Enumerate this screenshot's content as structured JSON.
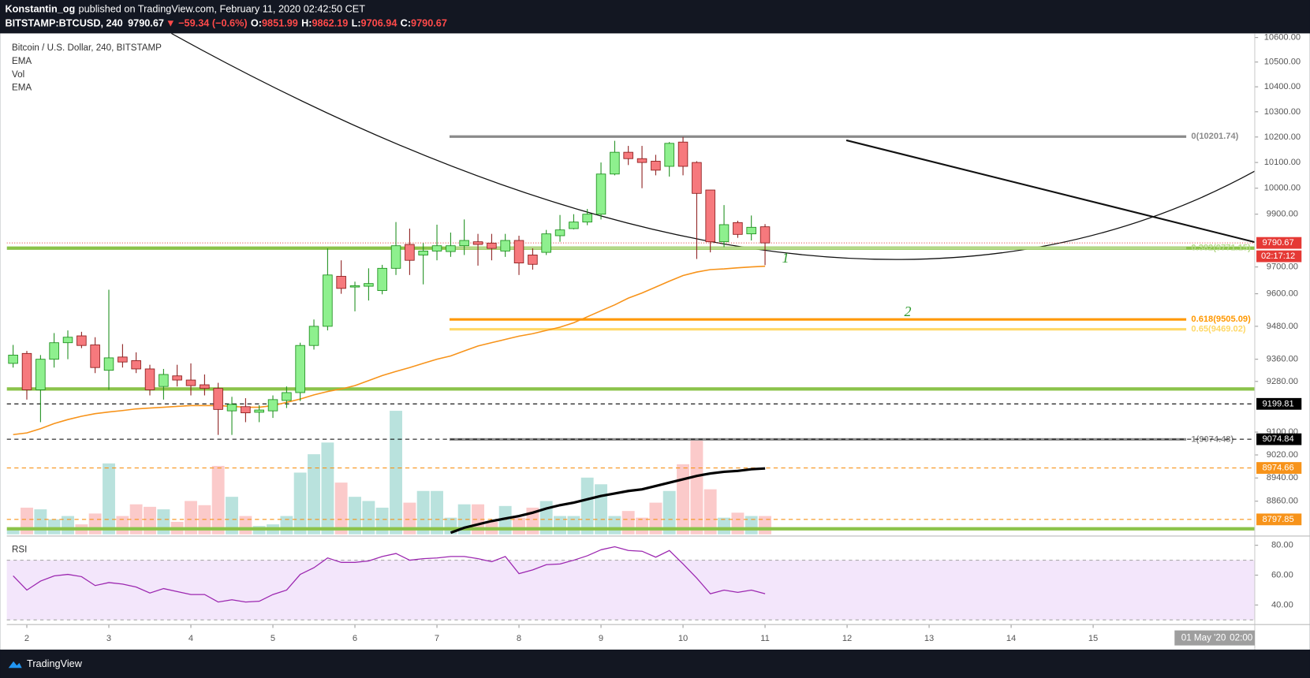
{
  "header": {
    "author": "Konstantin_og",
    "published": "published on TradingView.com, February 11, 2020 02:42:50 CET",
    "symbol": "BITSTAMP:BTCUSD, 240",
    "last": "9790.67",
    "change": "▼ −59.34 (−0.6%)",
    "ohlc": [
      {
        "label": "O:",
        "value": "9851.99"
      },
      {
        "label": "H:",
        "value": "9862.19"
      },
      {
        "label": "L:",
        "value": "9706.94"
      },
      {
        "label": "C:",
        "value": "9790.67"
      }
    ]
  },
  "footer": {
    "brand": "TradingView"
  },
  "chart_data": {
    "type": "candlestick",
    "title": "Bitcoin / U.S. Dollar, 240, BITSTAMP",
    "log_scale": true,
    "up_color": "#8ef08e",
    "up_border": "#1b8e1b",
    "down_color": "#f6797d",
    "down_border": "#8b1a1a",
    "x": [
      1.833,
      2,
      2.167,
      2.333,
      2.5,
      2.667,
      2.833,
      3,
      3.167,
      3.333,
      3.5,
      3.667,
      3.833,
      4,
      4.167,
      4.333,
      4.5,
      4.667,
      4.833,
      5,
      5.167,
      5.333,
      5.5,
      5.667,
      5.833,
      6,
      6.167,
      6.333,
      6.5,
      6.667,
      6.833,
      7,
      7.167,
      7.333,
      7.5,
      7.667,
      7.833,
      8,
      8.167,
      8.333,
      8.5,
      8.667,
      8.833,
      9,
      9.167,
      9.333,
      9.5,
      9.667,
      9.833,
      10,
      10.167,
      10.333,
      10.5,
      10.667,
      10.833,
      11
    ],
    "open": [
      9345,
      9381,
      9250,
      9360,
      9420,
      9445,
      9412,
      9320,
      9368,
      9355,
      9325,
      9262,
      9300,
      9285,
      9268,
      9255,
      9175,
      9190,
      9170,
      9175,
      9212,
      9240,
      9410,
      9480,
      9665,
      9625,
      9628,
      9612,
      9695,
      9785,
      9745,
      9760,
      9758,
      9780,
      9795,
      9790,
      9760,
      9800,
      9745,
      9755,
      9818,
      9845,
      9870,
      9900,
      10055,
      10140,
      10115,
      10105,
      10085,
      10180,
      10100,
      9993,
      9795,
      9868,
      9825,
      9851.99
    ],
    "high": [
      9412,
      9390,
      9375,
      9455,
      9465,
      9460,
      9440,
      9615,
      9415,
      9385,
      9340,
      9325,
      9340,
      9345,
      9305,
      9275,
      9225,
      9220,
      9195,
      9230,
      9262,
      9420,
      9505,
      9770,
      9725,
      9645,
      9695,
      9708,
      9870,
      9845,
      9790,
      9860,
      9830,
      9880,
      9825,
      9825,
      9825,
      9818,
      9770,
      9840,
      9897,
      9900,
      9920,
      10100,
      10185,
      10165,
      10165,
      10130,
      10180,
      10200,
      10105,
      9993,
      9935,
      9875,
      9895,
      9862.19
    ],
    "low": [
      9330,
      9215,
      9135,
      9330,
      9360,
      9400,
      9310,
      9250,
      9330,
      9310,
      9230,
      9215,
      9262,
      9230,
      9230,
      9090,
      9090,
      9135,
      9135,
      9150,
      9185,
      9210,
      9395,
      9465,
      9600,
      9535,
      9575,
      9598,
      9670,
      9670,
      9635,
      9725,
      9738,
      9745,
      9705,
      9725,
      9738,
      9670,
      9690,
      9745,
      9795,
      9842,
      9858,
      9880,
      10050,
      10090,
      10000,
      10050,
      10045,
      10050,
      9730,
      9755,
      9775,
      9810,
      9800,
      9706.94
    ],
    "close": [
      9375,
      9250,
      9360,
      9420,
      9440,
      9410,
      9330,
      9365,
      9350,
      9325,
      9250,
      9305,
      9285,
      9265,
      9255,
      9180,
      9198,
      9168,
      9178,
      9215,
      9240,
      9410,
      9480,
      9670,
      9620,
      9630,
      9638,
      9695,
      9780,
      9725,
      9760,
      9780,
      9780,
      9800,
      9785,
      9770,
      9800,
      9715,
      9710,
      9825,
      9840,
      9870,
      9900,
      10055,
      10140,
      10115,
      10100,
      10070,
      10175,
      10085,
      9980,
      9795,
      9860,
      9823,
      9850,
      9790.67
    ],
    "ema": {
      "name": "EMA",
      "color": "#f7931a",
      "values": [
        9091,
        9097,
        9112,
        9130,
        9144,
        9156,
        9165,
        9171,
        9176,
        9182,
        9185,
        9188,
        9191,
        9194,
        9194,
        9194,
        9191,
        9188,
        9188,
        9194,
        9205,
        9217,
        9232,
        9244,
        9253,
        9265,
        9283,
        9301,
        9316,
        9330,
        9345,
        9360,
        9372,
        9390,
        9408,
        9420,
        9432,
        9444,
        9453,
        9465,
        9477,
        9493,
        9515,
        9537,
        9559,
        9584,
        9603,
        9625,
        9647,
        9668,
        9681,
        9690,
        9693,
        9697,
        9700,
        9703
      ]
    },
    "volume": {
      "name": "Vol",
      "up_color": "#b9e2dd",
      "down_color": "#fbcaca",
      "vlim": [
        0,
        600
      ],
      "values": [
        6,
        32,
        30,
        18,
        22,
        12,
        25,
        85,
        22,
        36,
        33,
        30,
        15,
        40,
        35,
        82,
        45,
        22,
        10,
        12,
        22,
        74,
        96,
        110,
        62,
        45,
        40,
        32,
        148,
        38,
        52,
        52,
        20,
        36,
        36,
        15,
        34,
        20,
        32,
        40,
        22,
        22,
        68,
        60,
        22,
        28,
        20,
        38,
        52,
        84,
        113,
        54,
        20,
        26,
        22,
        22
      ]
    },
    "volume_ema": {
      "name": "EMA",
      "color": "#000000",
      "values": [
        null,
        null,
        null,
        null,
        null,
        null,
        null,
        null,
        null,
        null,
        null,
        null,
        null,
        null,
        null,
        null,
        null,
        null,
        null,
        null,
        null,
        null,
        null,
        null,
        null,
        null,
        null,
        null,
        null,
        null,
        null,
        null,
        2,
        8,
        12,
        16,
        19,
        22,
        26,
        31,
        35,
        38,
        42,
        46,
        49,
        52,
        54,
        58,
        62,
        66,
        70,
        73,
        75,
        76,
        78,
        79
      ]
    },
    "ylim": [
      8747,
      10617
    ],
    "yticks": [
      {
        "value": 8860,
        "label": "8860.00"
      },
      {
        "value": 8940,
        "label": "8940.00"
      },
      {
        "value": 9020,
        "label": "9020.00"
      },
      {
        "value": 9100,
        "label": "9100.00"
      },
      {
        "value": 9280,
        "label": "9280.00"
      },
      {
        "value": 9360,
        "label": "9360.00"
      },
      {
        "value": 9480,
        "label": "9480.00"
      },
      {
        "value": 9600,
        "label": "9600.00"
      },
      {
        "value": 9700,
        "label": "9700.00"
      },
      {
        "value": 9900,
        "label": "9900.00"
      },
      {
        "value": 10000,
        "label": "10000.00"
      },
      {
        "value": 10100,
        "label": "10100.00"
      },
      {
        "value": 10200,
        "label": "10200.00"
      },
      {
        "value": 10300,
        "label": "10300.00"
      },
      {
        "value": 10400,
        "label": "10400.00"
      },
      {
        "value": 10500,
        "label": "10500.00"
      },
      {
        "value": 10600,
        "label": "10600.00"
      }
    ],
    "xlim": [
      1.756,
      16.97
    ],
    "xticks": [
      2,
      3,
      4,
      5,
      6,
      7,
      8,
      9,
      10,
      11,
      12,
      13,
      14,
      15
    ],
    "cursor_date": "01 May '20",
    "cursor_time": "02:00",
    "hlines": [
      {
        "value": 9771,
        "color": "#8bc34a"
      },
      {
        "value": 9253,
        "color": "#8bc34a"
      },
      {
        "value": 8766,
        "color": "#8bc34a"
      }
    ],
    "fib_levels": [
      {
        "value": 10201.74,
        "label": "0(10201.74)",
        "color": "#8a8a8a"
      },
      {
        "value": 9771.15,
        "label": "0.382(9771.15)",
        "color": "#b5d98a"
      },
      {
        "value": 9505.09,
        "label": "0.618(9505.09)",
        "color": "#ff9800"
      },
      {
        "value": 9469.02,
        "label": "0.65(9469.02)",
        "color": "#ffd866"
      },
      {
        "value": 9074.48,
        "label": "1(9074.48)",
        "color": "#8a8a8a"
      }
    ],
    "price_lines": [
      {
        "value": 9790.67,
        "color": "#e53935"
      },
      {
        "value": 9199.81,
        "color": "#000000"
      },
      {
        "value": 9074.84,
        "color": "#000000"
      },
      {
        "value": 8974.66,
        "color": "#f7931a"
      },
      {
        "value": 8797.85,
        "color": "#f7931a"
      }
    ],
    "countdown": "02:17:12",
    "annotations": [
      {
        "text": "1",
        "x": 11.25,
        "y": 9735
      },
      {
        "text": "2",
        "x": 12.74,
        "y": 9535
      }
    ],
    "rsi": {
      "name": "RSI",
      "color": "#9c27b0",
      "ylim": [
        28,
        84.5
      ],
      "band": [
        30,
        70
      ],
      "yticks": [
        {
          "value": 40,
          "label": "40.00"
        },
        {
          "value": 60,
          "label": "60.00"
        },
        {
          "value": 80,
          "label": "80.00"
        }
      ],
      "values": [
        59.5,
        50,
        56,
        59.5,
        60.5,
        59,
        53,
        55,
        54,
        52,
        48,
        51,
        49,
        47,
        47,
        42,
        43.5,
        42,
        42.5,
        47,
        50,
        60.5,
        65,
        71.5,
        68.5,
        68.5,
        69.5,
        72.5,
        74.5,
        70,
        71,
        71.5,
        72.5,
        72.5,
        71,
        69,
        72.5,
        61,
        63.5,
        67,
        67.5,
        70,
        73,
        77,
        79,
        76.5,
        76,
        72,
        76.5,
        67.5,
        58,
        47.5,
        50,
        48.5,
        50,
        47.5
      ]
    }
  }
}
